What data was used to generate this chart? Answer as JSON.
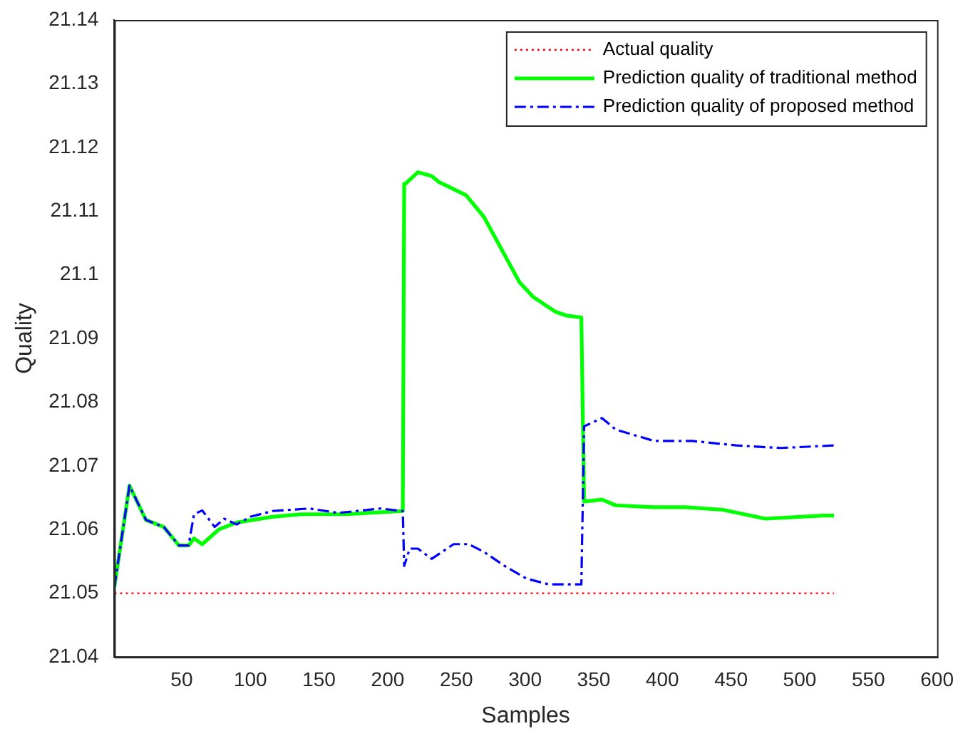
{
  "chart_data": {
    "type": "line",
    "xlabel": "Samples",
    "ylabel": "Quality",
    "xlim": [
      1,
      600
    ],
    "xticks": [
      50,
      100,
      150,
      200,
      250,
      300,
      350,
      400,
      450,
      500,
      550,
      600
    ],
    "ylim": [
      21.04,
      21.14
    ],
    "yticks": [
      21.04,
      21.05,
      21.06,
      21.07,
      21.08,
      21.09,
      21.1,
      21.11,
      21.12,
      21.13,
      21.14
    ],
    "legend": "top right",
    "marker": "none",
    "series": [
      {
        "name": "Actual quality",
        "color": "#ff0000",
        "line_style": "dotted",
        "x": [
          1,
          525
        ],
        "values": [
          21.05,
          21.05
        ]
      },
      {
        "name": "Prediction quality of traditional method",
        "color": "#00ff00",
        "line_style": "solid",
        "x": [
          1,
          12,
          24,
          37,
          48,
          55,
          59,
          65,
          77,
          90,
          116,
          137,
          169,
          211,
          212,
          213,
          222,
          232,
          237,
          257,
          270,
          296,
          306,
          322,
          330,
          341,
          343,
          356,
          366,
          394,
          417,
          444,
          475,
          517,
          525
        ],
        "values": [
          21.051,
          21.0669,
          21.0615,
          21.0604,
          21.0575,
          21.0575,
          21.0586,
          21.0577,
          21.06,
          21.0611,
          21.062,
          21.0624,
          21.0624,
          21.0629,
          21.1143,
          21.1143,
          21.1161,
          21.1155,
          21.1146,
          21.1125,
          21.1091,
          21.0988,
          21.0965,
          21.0942,
          21.0936,
          21.0933,
          21.0644,
          21.0647,
          21.0638,
          21.0635,
          21.0635,
          21.0631,
          21.0617,
          21.0622,
          21.0622
        ]
      },
      {
        "name": "Prediction quality of proposed method",
        "color": "#0000ff",
        "line_style": "dashed",
        "x": [
          1,
          12,
          24,
          37,
          48,
          55,
          59,
          65,
          74,
          81,
          90,
          100,
          116,
          143,
          164,
          195,
          211,
          212,
          216,
          222,
          232,
          248,
          259,
          270,
          285,
          301,
          317,
          341,
          343,
          356,
          366,
          394,
          422,
          454,
          486,
          525
        ],
        "values": [
          21.051,
          21.0669,
          21.0615,
          21.0604,
          21.0575,
          21.0575,
          21.0624,
          21.063,
          21.0604,
          21.0617,
          21.0608,
          21.062,
          21.0629,
          21.0633,
          21.0626,
          21.0633,
          21.0629,
          21.0543,
          21.057,
          21.057,
          21.0554,
          21.0577,
          21.0577,
          21.0565,
          21.0543,
          21.0523,
          21.0514,
          21.0514,
          21.0762,
          21.0775,
          21.0757,
          21.0739,
          21.0739,
          21.0732,
          21.0728,
          21.0732
        ]
      }
    ]
  }
}
